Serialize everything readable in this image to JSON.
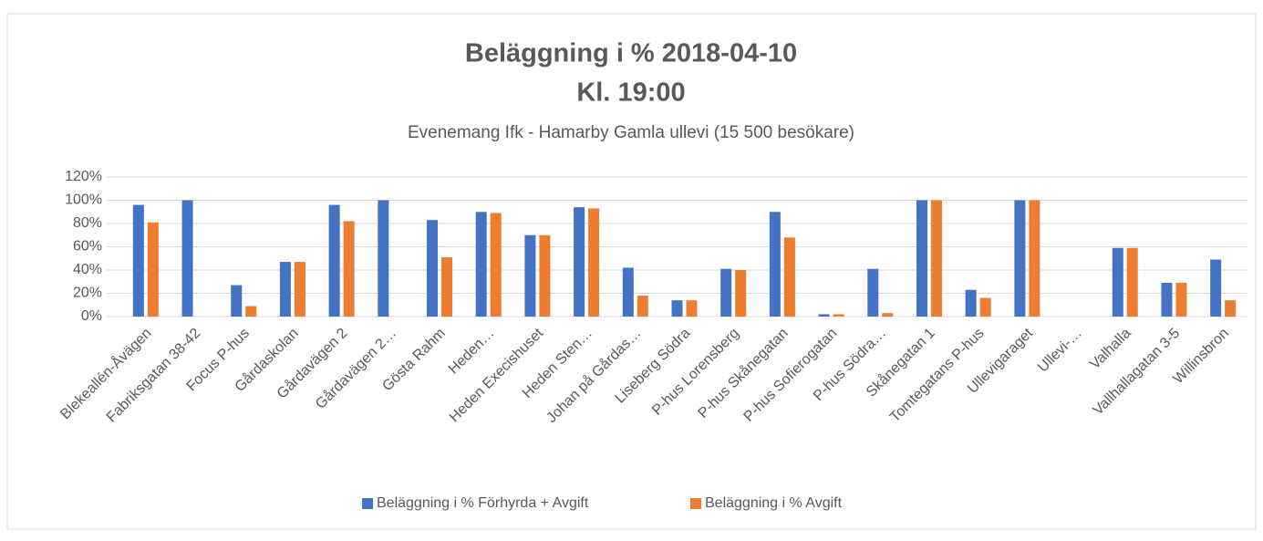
{
  "chart_data": {
    "type": "bar",
    "title": "Beläggning i % 2018-04-10",
    "subtitle_line": "Kl. 19:00",
    "subtitle": "Evenemang Ifk - Hamarby Gamla ullevi (15 500 besökare)",
    "categories": [
      "Blekeallén-Åvägen",
      "Fabriksgatan 38-42",
      "Focus P-hus",
      "Gårdaskolan",
      "Gårdavägen 2",
      "Gårdavägen 2…",
      "Gösta Rahm",
      "Heden…",
      "Heden Execishuset",
      "Heden Sten…",
      "Johan på Gårdas…",
      "Liseberg Södra",
      "P-hus Lorensberg",
      "P-hus Skånegatan",
      "P-hus Sofierogatan",
      "P-hus Södra…",
      "Skånegatan 1",
      "Tomtegatans P-hus",
      "Ullevigaraget",
      "Ullevi-…",
      "Valhalla",
      "Vallhallagatan 3-5",
      "Willinsbron"
    ],
    "series": [
      {
        "name": "Beläggning i % Förhyrda + Avgift",
        "color": "#4472c4",
        "values": [
          96,
          100,
          27,
          47,
          96,
          100,
          83,
          90,
          70,
          94,
          42,
          14,
          41,
          90,
          2,
          41,
          100,
          23,
          100,
          0,
          59,
          29,
          49
        ]
      },
      {
        "name": "Beläggning i % Avgift",
        "color": "#ed7d31",
        "values": [
          81,
          0,
          9,
          47,
          82,
          0,
          51,
          89,
          70,
          93,
          18,
          14,
          40,
          68,
          2,
          3,
          100,
          16,
          100,
          0,
          59,
          29,
          14
        ]
      }
    ],
    "ylim": [
      0,
      120
    ],
    "yticks": [
      {
        "value": 0,
        "label": "0%"
      },
      {
        "value": 20,
        "label": "20%"
      },
      {
        "value": 40,
        "label": "40%"
      },
      {
        "value": 60,
        "label": "60%"
      },
      {
        "value": 80,
        "label": "80%"
      },
      {
        "value": 100,
        "label": "100%"
      },
      {
        "value": 120,
        "label": "120%"
      }
    ],
    "grid": true,
    "legend": "bottom"
  }
}
